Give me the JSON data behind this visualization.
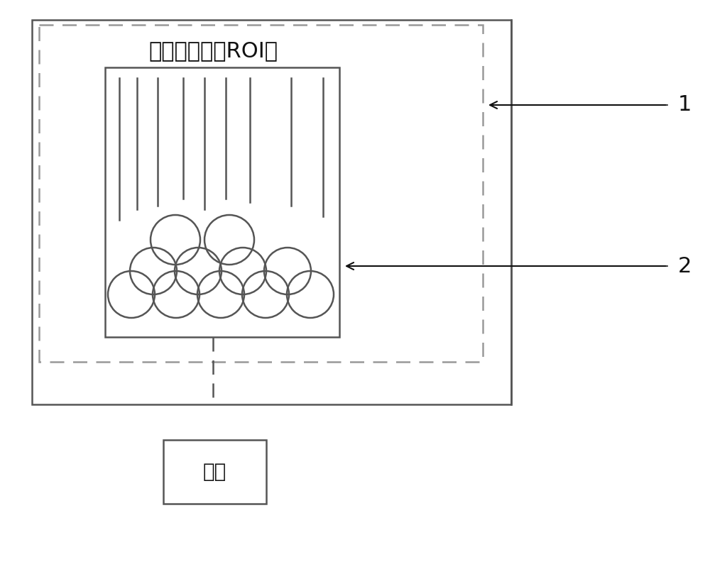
{
  "bg_color": "#ffffff",
  "line_color": "#555555",
  "dashed_color": "#999999",
  "text_color": "#111111",
  "roi_label": "感兴趣区域（ROI）",
  "camera_label": "相机",
  "label1": "1",
  "label2": "2",
  "font_size_roi": 22,
  "font_size_label": 22,
  "font_size_camera": 20,
  "fig_width": 10.0,
  "fig_height": 8.02,
  "dpi": 100
}
